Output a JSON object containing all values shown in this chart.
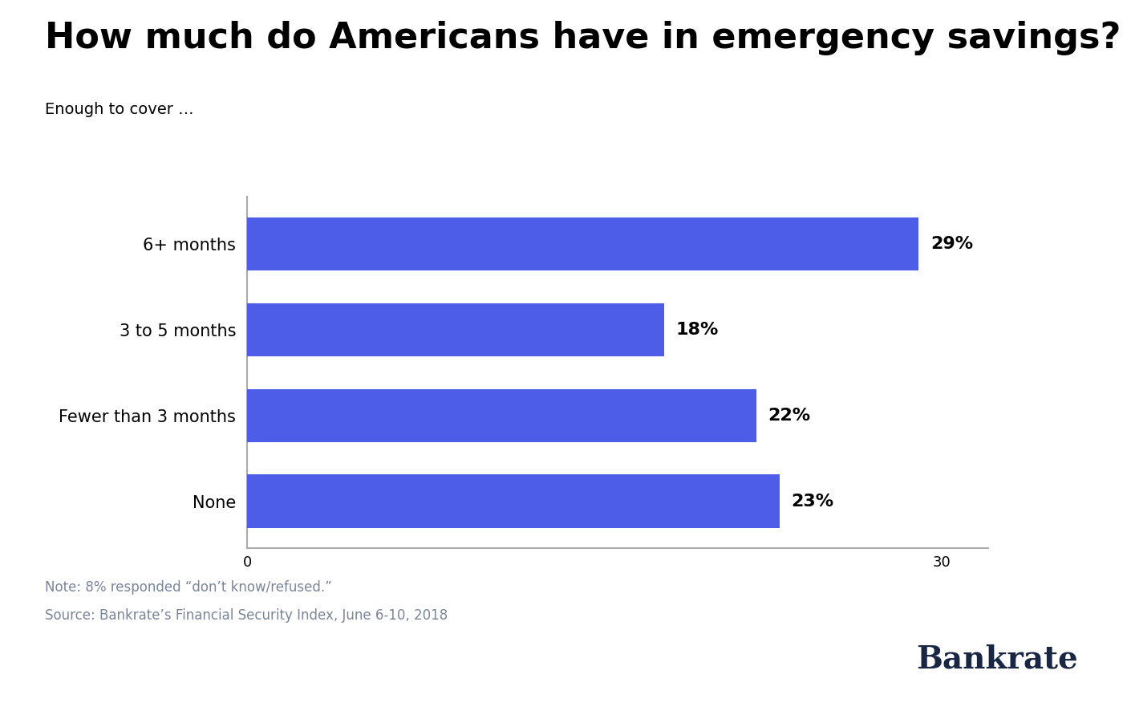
{
  "title": "How much do Americans have in emergency savings?",
  "subtitle": "Enough to cover …",
  "categories": [
    "6+ months",
    "3 to 5 months",
    "Fewer than 3 months",
    "None"
  ],
  "values": [
    29,
    18,
    22,
    23
  ],
  "labels": [
    "29%",
    "18%",
    "22%",
    "23%"
  ],
  "bar_color": "#4d5de8",
  "xlim": [
    0,
    32
  ],
  "xticks": [
    0,
    30
  ],
  "note_line1": "Note: 8% responded “don’t know/refused.”",
  "note_line2": "Source: Bankrate’s Financial Security Index, June 6-10, 2018",
  "brand": "Bankrate",
  "background_color": "#ffffff",
  "title_fontsize": 32,
  "subtitle_fontsize": 14,
  "category_fontsize": 15,
  "label_fontsize": 16,
  "note_fontsize": 12,
  "brand_fontsize": 28,
  "tick_fontsize": 13,
  "bar_height": 0.62,
  "note_color": "#7a8599",
  "brand_color": "#1a2744"
}
